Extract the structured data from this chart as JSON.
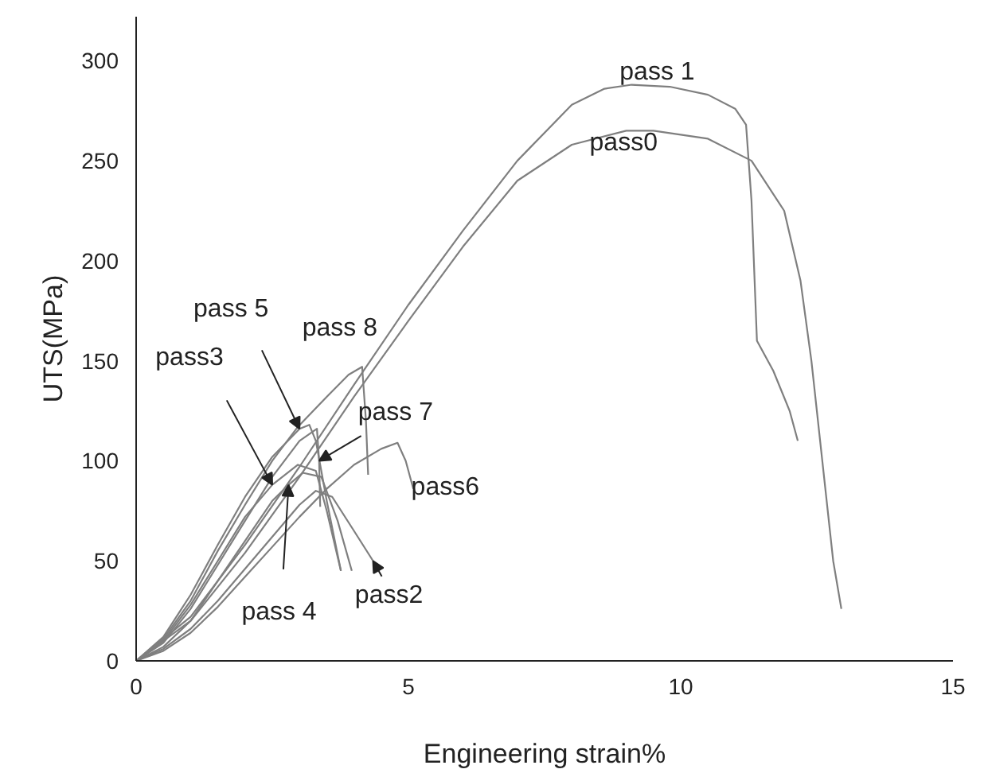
{
  "chart_data": {
    "type": "line",
    "xlabel": "Engineering strain%",
    "ylabel": "UTS(MPa)",
    "xlim": [
      0,
      15
    ],
    "ylim": [
      0,
      322
    ],
    "xticks": [
      0,
      5,
      10,
      15
    ],
    "yticks": [
      0,
      50,
      100,
      150,
      200,
      250,
      300
    ],
    "grid": false,
    "marker": "none",
    "line_style": "solid",
    "series": [
      {
        "color": "#7f7f7f",
        "x": [
          0,
          1,
          2,
          3,
          4,
          5,
          6,
          7,
          8,
          8.6,
          9.1,
          9.8,
          10.5,
          11.0,
          11.2,
          11.3,
          11.4,
          11.7,
          12.0,
          12.15
        ],
        "values": [
          0,
          22,
          58,
          97,
          138,
          178,
          215,
          250,
          278,
          286,
          288,
          287,
          283,
          276,
          268,
          230,
          160,
          145,
          125,
          110
        ]
      },
      {
        "color": "#7f7f7f",
        "x": [
          0,
          1,
          2,
          3,
          4,
          5,
          6,
          7,
          8,
          9,
          9.5,
          10.5,
          11.3,
          11.9,
          12.2,
          12.4,
          12.6,
          12.8,
          12.95
        ],
        "values": [
          0,
          20,
          54,
          92,
          132,
          170,
          207,
          240,
          258,
          265,
          265,
          261,
          250,
          225,
          190,
          150,
          100,
          50,
          26
        ]
      },
      {
        "color": "#7f7f7f",
        "x": [
          0,
          0.5,
          1,
          1.5,
          2,
          2.5,
          3,
          3.3,
          3.6,
          4.0,
          4.35
        ],
        "values": [
          0,
          6,
          16,
          30,
          46,
          62,
          78,
          85,
          82,
          65,
          50
        ]
      },
      {
        "color": "#7f7f7f",
        "x": [
          0,
          0.5,
          1,
          1.5,
          2,
          2.5,
          2.97,
          3.3,
          3.5,
          3.76
        ],
        "values": [
          0,
          10,
          28,
          50,
          72,
          88,
          98,
          95,
          75,
          45
        ]
      },
      {
        "color": "#7f7f7f",
        "x": [
          0,
          0.5,
          1,
          1.5,
          2,
          2.5,
          2.8,
          3.06,
          3.4,
          3.7,
          3.96
        ],
        "values": [
          0,
          7,
          20,
          40,
          60,
          80,
          88,
          94,
          92,
          70,
          45
        ]
      },
      {
        "color": "#7f7f7f",
        "x": [
          0,
          0.5,
          1,
          1.5,
          2,
          2.5,
          3.0,
          3.18,
          3.3,
          3.5,
          3.76
        ],
        "values": [
          0,
          12,
          33,
          58,
          82,
          102,
          116,
          118,
          110,
          80,
          45
        ]
      },
      {
        "color": "#7f7f7f",
        "x": [
          0,
          0.5,
          1,
          1.5,
          2,
          2.5,
          3,
          3.5,
          4,
          4.5,
          4.8,
          4.95,
          5.09
        ],
        "values": [
          0,
          5,
          14,
          27,
          42,
          57,
          72,
          86,
          98,
          106,
          109,
          100,
          86
        ]
      },
      {
        "color": "#7f7f7f",
        "x": [
          0,
          0.5,
          1,
          1.5,
          2,
          2.5,
          3,
          3.32,
          3.36,
          3.38
        ],
        "values": [
          0,
          9,
          26,
          48,
          70,
          92,
          110,
          116,
          100,
          77
        ]
      },
      {
        "color": "#7f7f7f",
        "x": [
          0,
          0.5,
          1,
          1.5,
          2,
          2.5,
          2.97,
          3.5,
          3.9,
          4.15,
          4.22,
          4.26
        ],
        "values": [
          0,
          11,
          30,
          55,
          78,
          100,
          117,
          132,
          143,
          147,
          120,
          93
        ]
      }
    ],
    "annotations": [
      {
        "text": "pass 1",
        "x": 9.1,
        "y": 288
      },
      {
        "text": "pass0",
        "x": 8.6,
        "y": 262
      },
      {
        "text": "pass 8",
        "x": 4.15,
        "y": 147
      },
      {
        "text": "pass 5",
        "x": 3.0,
        "y": 116
      },
      {
        "text": "pass3",
        "x": 2.5,
        "y": 88
      },
      {
        "text": "pass 7",
        "x": 3.36,
        "y": 100
      },
      {
        "text": "pass6",
        "x": 4.8,
        "y": 109
      },
      {
        "text": "pass 4",
        "x": 2.8,
        "y": 88
      },
      {
        "text": "pass2",
        "x": 4.35,
        "y": 50
      }
    ]
  }
}
